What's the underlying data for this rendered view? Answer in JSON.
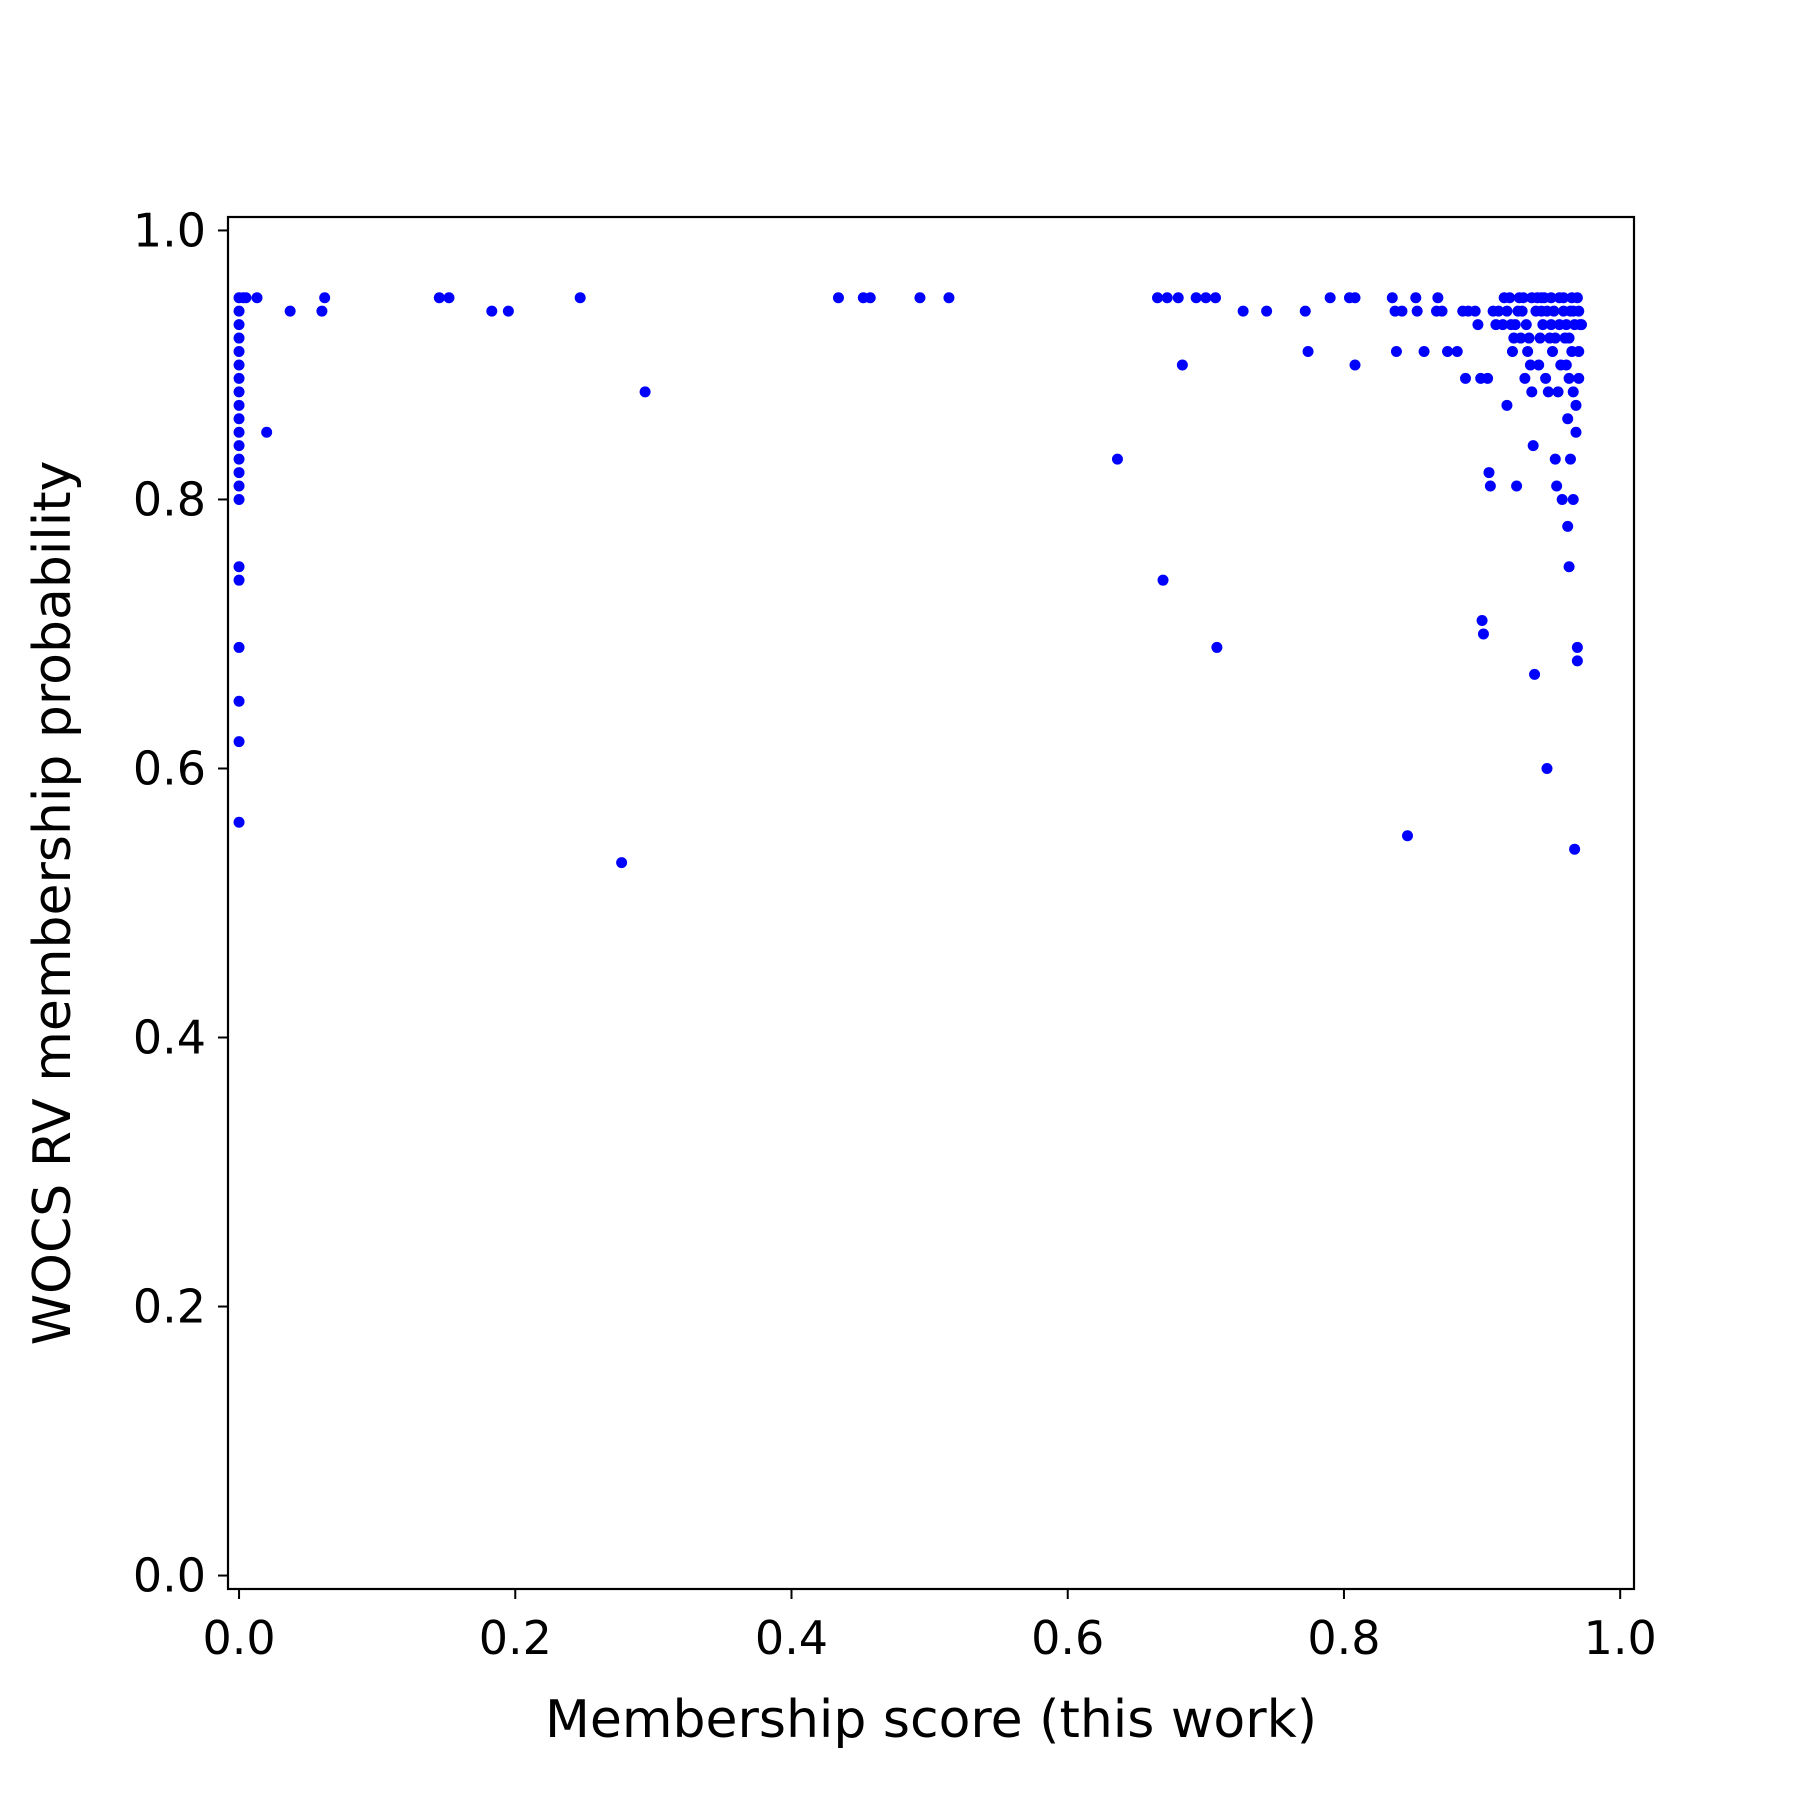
{
  "chart_data": {
    "type": "scatter",
    "title": "",
    "xlabel": "Membership score (this work)",
    "ylabel": "WOCS RV membership probability",
    "xlim": [
      -0.008,
      1.01
    ],
    "ylim": [
      -0.01,
      1.01
    ],
    "xticks": [
      "0.0",
      "0.2",
      "0.4",
      "0.6",
      "0.8",
      "1.0"
    ],
    "yticks": [
      "0.0",
      "0.2",
      "0.4",
      "0.6",
      "0.8",
      "1.0"
    ],
    "grid": false,
    "marker_color": "#0000ff",
    "points": [
      [
        0.0,
        0.95
      ],
      [
        0.0,
        0.94
      ],
      [
        0.0,
        0.93
      ],
      [
        0.0,
        0.92
      ],
      [
        0.0,
        0.91
      ],
      [
        0.0,
        0.9
      ],
      [
        0.0,
        0.89
      ],
      [
        0.0,
        0.88
      ],
      [
        0.0,
        0.87
      ],
      [
        0.0,
        0.86
      ],
      [
        0.0,
        0.85
      ],
      [
        0.0,
        0.84
      ],
      [
        0.0,
        0.83
      ],
      [
        0.0,
        0.82
      ],
      [
        0.0,
        0.81
      ],
      [
        0.0,
        0.8
      ],
      [
        0.0,
        0.75
      ],
      [
        0.0,
        0.74
      ],
      [
        0.0,
        0.69
      ],
      [
        0.0,
        0.65
      ],
      [
        0.0,
        0.62
      ],
      [
        0.0,
        0.56
      ],
      [
        0.003,
        0.95
      ],
      [
        0.005,
        0.95
      ],
      [
        0.013,
        0.95
      ],
      [
        0.02,
        0.85
      ],
      [
        0.037,
        0.94
      ],
      [
        0.06,
        0.94
      ],
      [
        0.062,
        0.95
      ],
      [
        0.145,
        0.95
      ],
      [
        0.152,
        0.95
      ],
      [
        0.183,
        0.94
      ],
      [
        0.195,
        0.94
      ],
      [
        0.247,
        0.95
      ],
      [
        0.277,
        0.53
      ],
      [
        0.294,
        0.88
      ],
      [
        0.434,
        0.95
      ],
      [
        0.452,
        0.95
      ],
      [
        0.457,
        0.95
      ],
      [
        0.493,
        0.95
      ],
      [
        0.514,
        0.95
      ],
      [
        0.636,
        0.83
      ],
      [
        0.665,
        0.95
      ],
      [
        0.669,
        0.74
      ],
      [
        0.672,
        0.95
      ],
      [
        0.68,
        0.95
      ],
      [
        0.683,
        0.9
      ],
      [
        0.693,
        0.95
      ],
      [
        0.7,
        0.95
      ],
      [
        0.707,
        0.95
      ],
      [
        0.708,
        0.69
      ],
      [
        0.727,
        0.94
      ],
      [
        0.744,
        0.94
      ],
      [
        0.772,
        0.94
      ],
      [
        0.774,
        0.91
      ],
      [
        0.79,
        0.95
      ],
      [
        0.804,
        0.95
      ],
      [
        0.808,
        0.95
      ],
      [
        0.808,
        0.9
      ],
      [
        0.835,
        0.95
      ],
      [
        0.837,
        0.94
      ],
      [
        0.838,
        0.91
      ],
      [
        0.842,
        0.94
      ],
      [
        0.846,
        0.55
      ],
      [
        0.852,
        0.95
      ],
      [
        0.853,
        0.94
      ],
      [
        0.858,
        0.91
      ],
      [
        0.867,
        0.94
      ],
      [
        0.868,
        0.95
      ],
      [
        0.871,
        0.94
      ],
      [
        0.875,
        0.91
      ],
      [
        0.882,
        0.91
      ],
      [
        0.886,
        0.94
      ],
      [
        0.888,
        0.89
      ],
      [
        0.89,
        0.94
      ],
      [
        0.895,
        0.94
      ],
      [
        0.897,
        0.93
      ],
      [
        0.899,
        0.89
      ],
      [
        0.9,
        0.71
      ],
      [
        0.901,
        0.7
      ],
      [
        0.904,
        0.89
      ],
      [
        0.905,
        0.82
      ],
      [
        0.906,
        0.81
      ],
      [
        0.908,
        0.94
      ],
      [
        0.91,
        0.93
      ],
      [
        0.912,
        0.94
      ],
      [
        0.915,
        0.93
      ],
      [
        0.918,
        0.87
      ],
      [
        0.92,
        0.95
      ],
      [
        0.922,
        0.91
      ],
      [
        0.924,
        0.93
      ],
      [
        0.925,
        0.81
      ],
      [
        0.926,
        0.94
      ],
      [
        0.928,
        0.92
      ],
      [
        0.93,
        0.95
      ],
      [
        0.931,
        0.89
      ],
      [
        0.933,
        0.91
      ],
      [
        0.934,
        0.92
      ],
      [
        0.935,
        0.9
      ],
      [
        0.936,
        0.88
      ],
      [
        0.937,
        0.84
      ],
      [
        0.938,
        0.67
      ],
      [
        0.94,
        0.95
      ],
      [
        0.941,
        0.9
      ],
      [
        0.942,
        0.92
      ],
      [
        0.943,
        0.94
      ],
      [
        0.944,
        0.93
      ],
      [
        0.945,
        0.95
      ],
      [
        0.946,
        0.89
      ],
      [
        0.947,
        0.6
      ],
      [
        0.948,
        0.88
      ],
      [
        0.949,
        0.92
      ],
      [
        0.95,
        0.95
      ],
      [
        0.951,
        0.91
      ],
      [
        0.952,
        0.94
      ],
      [
        0.953,
        0.83
      ],
      [
        0.954,
        0.81
      ],
      [
        0.955,
        0.88
      ],
      [
        0.956,
        0.93
      ],
      [
        0.957,
        0.9
      ],
      [
        0.958,
        0.8
      ],
      [
        0.959,
        0.95
      ],
      [
        0.96,
        0.92
      ],
      [
        0.961,
        0.9
      ],
      [
        0.962,
        0.78
      ],
      [
        0.962,
        0.86
      ],
      [
        0.963,
        0.75
      ],
      [
        0.963,
        0.89
      ],
      [
        0.964,
        0.94
      ],
      [
        0.964,
        0.83
      ],
      [
        0.965,
        0.91
      ],
      [
        0.965,
        0.95
      ],
      [
        0.966,
        0.88
      ],
      [
        0.966,
        0.8
      ],
      [
        0.967,
        0.93
      ],
      [
        0.967,
        0.54
      ],
      [
        0.968,
        0.87
      ],
      [
        0.968,
        0.85
      ],
      [
        0.969,
        0.69
      ],
      [
        0.969,
        0.68
      ],
      [
        0.97,
        0.89
      ],
      [
        0.97,
        0.94
      ],
      [
        0.97,
        0.91
      ],
      [
        0.971,
        0.93
      ],
      [
        0.916,
        0.95
      ],
      [
        0.918,
        0.94
      ],
      [
        0.921,
        0.93
      ],
      [
        0.923,
        0.92
      ],
      [
        0.927,
        0.95
      ],
      [
        0.929,
        0.94
      ],
      [
        0.932,
        0.93
      ],
      [
        0.936,
        0.95
      ],
      [
        0.939,
        0.94
      ],
      [
        0.943,
        0.95
      ],
      [
        0.947,
        0.94
      ],
      [
        0.95,
        0.93
      ],
      [
        0.953,
        0.92
      ],
      [
        0.956,
        0.95
      ],
      [
        0.959,
        0.94
      ],
      [
        0.961,
        0.93
      ],
      [
        0.963,
        0.92
      ],
      [
        0.966,
        0.94
      ],
      [
        0.969,
        0.95
      ],
      [
        0.972,
        0.93
      ]
    ]
  }
}
